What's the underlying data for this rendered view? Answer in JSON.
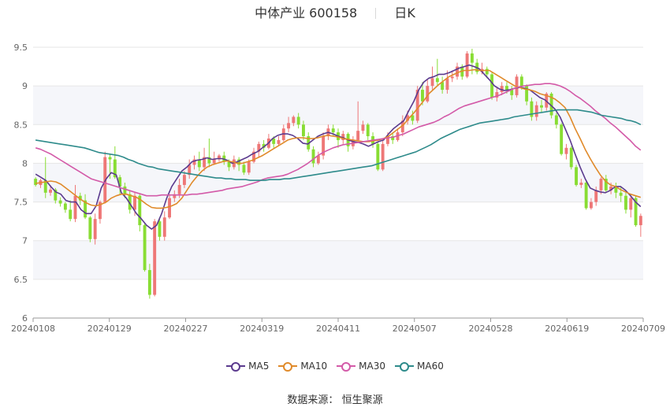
{
  "header": {
    "title": "中体产业 600158",
    "period": "日K"
  },
  "source": {
    "label": "数据来源：",
    "name": "恒生聚源"
  },
  "chart_data": {
    "type": "candlestick",
    "title": "中体产业 600158",
    "ylim": [
      6,
      9.5
    ],
    "yticks": [
      "6",
      "6.5",
      "7",
      "7.5",
      "8",
      "8.5",
      "9",
      "9.5"
    ],
    "x_tick_labels": [
      "20240108",
      "20240129",
      "20240227",
      "20240319",
      "20240411",
      "20240507",
      "20240528",
      "20240619",
      "20240709"
    ],
    "up_color": "#ee7777",
    "down_color": "#88dd33",
    "grid": true,
    "legend": {
      "placement": "bottom-center"
    },
    "candles": [
      [
        7.8,
        7.72,
        7.82,
        7.7
      ],
      [
        7.72,
        7.78,
        7.8,
        7.68
      ],
      [
        7.78,
        7.62,
        8.08,
        7.55
      ],
      [
        7.62,
        7.66,
        7.72,
        7.58
      ],
      [
        7.66,
        7.52,
        7.68,
        7.48
      ],
      [
        7.52,
        7.48,
        7.56,
        7.44
      ],
      [
        7.48,
        7.4,
        7.5,
        7.36
      ],
      [
        7.4,
        7.28,
        7.52,
        7.25
      ],
      [
        7.28,
        7.58,
        7.72,
        7.24
      ],
      [
        7.58,
        7.52,
        7.62,
        7.46
      ],
      [
        7.52,
        7.3,
        7.6,
        7.28
      ],
      [
        7.3,
        7.02,
        7.32,
        6.98
      ],
      [
        7.02,
        7.28,
        7.35,
        6.95
      ],
      [
        7.28,
        7.5,
        7.52,
        7.22
      ],
      [
        7.5,
        8.08,
        8.15,
        7.48
      ],
      [
        8.08,
        8.05,
        8.12,
        7.8
      ],
      [
        8.05,
        7.82,
        8.22,
        7.8
      ],
      [
        7.82,
        7.7,
        7.85,
        7.6
      ],
      [
        7.7,
        7.6,
        7.75,
        7.55
      ],
      [
        7.6,
        7.4,
        7.65,
        7.35
      ],
      [
        7.4,
        7.58,
        7.62,
        7.32
      ],
      [
        7.58,
        7.2,
        7.6,
        7.12
      ],
      [
        7.2,
        6.62,
        7.22,
        6.6
      ],
      [
        6.62,
        6.3,
        6.7,
        6.25
      ],
      [
        6.3,
        7.25,
        7.28,
        6.28
      ],
      [
        7.25,
        7.05,
        7.3,
        7.0
      ],
      [
        7.05,
        7.3,
        7.38,
        7.0
      ],
      [
        7.3,
        7.55,
        7.6,
        7.28
      ],
      [
        7.55,
        7.6,
        7.65,
        7.5
      ],
      [
        7.6,
        7.72,
        7.8,
        7.55
      ],
      [
        7.72,
        7.85,
        7.9,
        7.68
      ],
      [
        7.85,
        7.98,
        8.05,
        7.8
      ],
      [
        7.98,
        8.05,
        8.1,
        7.92
      ],
      [
        8.05,
        7.95,
        8.15,
        7.9
      ],
      [
        7.95,
        8.08,
        8.2,
        7.9
      ],
      [
        8.08,
        8.0,
        8.32,
        7.95
      ],
      [
        8.0,
        8.05,
        8.15,
        7.98
      ],
      [
        8.05,
        8.1,
        8.12,
        8.02
      ],
      [
        8.1,
        8.02,
        8.15,
        7.98
      ],
      [
        8.02,
        7.95,
        8.05,
        7.9
      ],
      [
        7.95,
        8.05,
        8.1,
        7.92
      ],
      [
        8.05,
        7.98,
        8.08,
        7.9
      ],
      [
        7.98,
        7.88,
        8.02,
        7.85
      ],
      [
        7.88,
        8.02,
        8.05,
        7.85
      ],
      [
        8.02,
        8.15,
        8.2,
        8.0
      ],
      [
        8.15,
        8.25,
        8.28,
        8.08
      ],
      [
        8.25,
        8.2,
        8.3,
        8.15
      ],
      [
        8.2,
        8.32,
        8.38,
        8.18
      ],
      [
        8.32,
        8.25,
        8.35,
        8.2
      ],
      [
        8.25,
        8.3,
        8.35,
        8.22
      ],
      [
        8.3,
        8.45,
        8.5,
        8.28
      ],
      [
        8.45,
        8.52,
        8.6,
        8.4
      ],
      [
        8.52,
        8.6,
        8.62,
        8.48
      ],
      [
        8.6,
        8.5,
        8.65,
        8.45
      ],
      [
        8.5,
        8.35,
        8.55,
        8.3
      ],
      [
        8.35,
        8.18,
        8.4,
        8.15
      ],
      [
        8.18,
        8.0,
        8.22,
        7.95
      ],
      [
        8.0,
        8.1,
        8.15,
        7.98
      ],
      [
        8.1,
        8.35,
        8.4,
        8.05
      ],
      [
        8.35,
        8.45,
        8.5,
        8.3
      ],
      [
        8.45,
        8.4,
        8.5,
        8.35
      ],
      [
        8.4,
        8.3,
        8.45,
        8.2
      ],
      [
        8.3,
        8.38,
        8.42,
        8.25
      ],
      [
        8.38,
        8.22,
        8.4,
        8.15
      ],
      [
        8.22,
        8.3,
        8.35,
        8.18
      ],
      [
        8.3,
        8.42,
        8.8,
        8.28
      ],
      [
        8.42,
        8.5,
        8.55,
        8.38
      ],
      [
        8.5,
        8.35,
        8.52,
        8.3
      ],
      [
        8.35,
        8.25,
        8.4,
        8.2
      ],
      [
        8.25,
        7.92,
        8.28,
        7.9
      ],
      [
        7.92,
        8.25,
        8.3,
        7.9
      ],
      [
        8.25,
        8.35,
        8.4,
        8.22
      ],
      [
        8.35,
        8.3,
        8.4,
        8.25
      ],
      [
        8.3,
        8.4,
        8.45,
        8.28
      ],
      [
        8.4,
        8.55,
        8.62,
        8.35
      ],
      [
        8.55,
        8.62,
        8.68,
        8.5
      ],
      [
        8.62,
        8.55,
        8.68,
        8.5
      ],
      [
        8.55,
        8.95,
        9.0,
        8.52
      ],
      [
        8.95,
        8.8,
        9.05,
        8.75
      ],
      [
        8.8,
        9.0,
        9.08,
        8.78
      ],
      [
        9.0,
        9.1,
        9.25,
        8.95
      ],
      [
        9.1,
        9.05,
        9.35,
        9.0
      ],
      [
        9.05,
        8.95,
        9.12,
        8.9
      ],
      [
        8.95,
        9.1,
        9.2,
        8.9
      ],
      [
        9.1,
        9.12,
        9.2,
        9.05
      ],
      [
        9.12,
        9.25,
        9.3,
        9.08
      ],
      [
        9.25,
        9.12,
        9.28,
        9.08
      ],
      [
        9.12,
        9.42,
        9.45,
        9.1
      ],
      [
        9.42,
        9.3,
        9.48,
        9.15
      ],
      [
        9.3,
        9.18,
        9.35,
        9.15
      ],
      [
        9.18,
        9.22,
        9.3,
        9.15
      ],
      [
        9.22,
        9.15,
        9.25,
        9.1
      ],
      [
        9.15,
        8.85,
        9.18,
        8.82
      ],
      [
        8.85,
        8.92,
        8.98,
        8.8
      ],
      [
        8.92,
        9.0,
        9.05,
        8.88
      ],
      [
        9.0,
        8.95,
        9.05,
        8.9
      ],
      [
        8.95,
        8.88,
        9.0,
        8.82
      ],
      [
        8.88,
        9.12,
        9.15,
        8.85
      ],
      [
        9.12,
        9.0,
        9.15,
        8.95
      ],
      [
        9.0,
        8.8,
        9.02,
        8.75
      ],
      [
        8.8,
        8.6,
        8.85,
        8.55
      ],
      [
        8.6,
        8.75,
        8.8,
        8.55
      ],
      [
        8.75,
        8.72,
        8.82,
        8.65
      ],
      [
        8.72,
        8.9,
        8.92,
        8.68
      ],
      [
        8.9,
        8.62,
        8.92,
        8.58
      ],
      [
        8.62,
        8.5,
        8.65,
        8.45
      ],
      [
        8.5,
        8.12,
        8.52,
        8.1
      ],
      [
        8.12,
        8.2,
        8.25,
        8.05
      ],
      [
        8.2,
        7.95,
        8.22,
        7.92
      ],
      [
        7.95,
        7.72,
        7.98,
        7.7
      ],
      [
        7.72,
        7.75,
        7.8,
        7.68
      ],
      [
        7.75,
        7.42,
        7.78,
        7.4
      ],
      [
        7.42,
        7.5,
        7.55,
        7.4
      ],
      [
        7.5,
        7.65,
        7.7,
        7.45
      ],
      [
        7.65,
        7.8,
        7.82,
        7.6
      ],
      [
        7.8,
        7.65,
        7.85,
        7.62
      ],
      [
        7.65,
        7.7,
        7.75,
        7.6
      ],
      [
        7.7,
        7.62,
        7.75,
        7.55
      ],
      [
        7.62,
        7.58,
        7.7,
        7.5
      ],
      [
        7.58,
        7.4,
        7.62,
        7.35
      ],
      [
        7.4,
        7.55,
        7.58,
        7.3
      ],
      [
        7.55,
        7.2,
        7.58,
        7.18
      ],
      [
        7.2,
        7.32,
        7.35,
        7.05
      ]
    ],
    "series": [
      {
        "name": "MA5",
        "color": "#5b3a8e",
        "values": [
          7.86,
          7.82,
          7.78,
          7.7,
          7.63,
          7.6,
          7.52,
          7.5,
          7.5,
          7.4,
          7.35,
          7.35,
          7.45,
          7.68,
          7.8,
          7.88,
          7.85,
          7.62,
          7.55,
          7.45,
          7.35,
          7.28,
          7.2,
          7.15,
          7.2,
          7.35,
          7.55,
          7.7,
          7.8,
          7.9,
          7.95,
          8.02,
          8.04,
          8.05,
          8.07,
          8.05,
          8.06,
          8.06,
          8.04,
          8.0,
          8.02,
          8.05,
          8.08,
          8.12,
          8.15,
          8.2,
          8.25,
          8.32,
          8.36,
          8.38,
          8.38,
          8.36,
          8.32,
          8.26,
          8.25,
          8.3,
          8.35,
          8.38,
          8.4,
          8.38,
          8.35,
          8.33,
          8.3,
          8.28,
          8.27,
          8.25,
          8.22,
          8.25,
          8.28,
          8.3,
          8.38,
          8.45,
          8.5,
          8.55,
          8.68,
          8.8,
          8.95,
          9.05,
          9.1,
          9.12,
          9.15,
          9.15,
          9.17,
          9.2,
          9.23,
          9.25,
          9.27,
          9.25,
          9.22,
          9.15,
          9.08,
          9.0,
          8.96,
          8.94,
          8.95,
          8.97,
          8.98,
          8.97,
          8.95,
          8.9,
          8.85,
          8.82,
          8.76,
          8.7,
          8.6,
          8.45,
          8.3,
          8.12,
          7.95,
          7.8,
          7.68,
          7.65,
          7.63,
          7.62,
          7.65,
          7.7,
          7.7,
          7.65,
          7.58,
          7.5,
          7.44
        ]
      },
      {
        "name": "MA10",
        "color": "#e08a2a",
        "values": [
          7.74,
          7.75,
          7.76,
          7.77,
          7.76,
          7.73,
          7.68,
          7.63,
          7.58,
          7.53,
          7.49,
          7.46,
          7.45,
          7.47,
          7.5,
          7.55,
          7.58,
          7.6,
          7.6,
          7.58,
          7.56,
          7.52,
          7.47,
          7.43,
          7.42,
          7.42,
          7.43,
          7.45,
          7.48,
          7.55,
          7.65,
          7.75,
          7.83,
          7.9,
          7.95,
          7.98,
          8.0,
          8.02,
          8.03,
          8.02,
          8.0,
          8.0,
          8.02,
          8.04,
          8.07,
          8.1,
          8.14,
          8.18,
          8.22,
          8.26,
          8.3,
          8.32,
          8.33,
          8.33,
          8.32,
          8.32,
          8.33,
          8.35,
          8.36,
          8.35,
          8.34,
          8.32,
          8.31,
          8.3,
          8.29,
          8.28,
          8.28,
          8.29,
          8.3,
          8.32,
          8.35,
          8.4,
          8.45,
          8.5,
          8.58,
          8.65,
          8.73,
          8.81,
          8.9,
          8.96,
          9.02,
          9.07,
          9.12,
          9.15,
          9.18,
          9.2,
          9.2,
          9.21,
          9.2,
          9.2,
          9.2,
          9.16,
          9.12,
          9.08,
          9.04,
          9.0,
          8.98,
          8.96,
          8.95,
          8.93,
          8.9,
          8.88,
          8.86,
          8.83,
          8.78,
          8.72,
          8.6,
          8.45,
          8.32,
          8.18,
          8.06,
          7.95,
          7.85,
          7.77,
          7.72,
          7.7,
          7.66,
          7.63,
          7.6,
          7.58,
          7.56
        ]
      },
      {
        "name": "MA30",
        "color": "#d35aa8",
        "values": [
          8.2,
          8.18,
          8.15,
          8.12,
          8.08,
          8.04,
          8.0,
          7.96,
          7.92,
          7.88,
          7.84,
          7.8,
          7.78,
          7.76,
          7.74,
          7.72,
          7.7,
          7.68,
          7.66,
          7.64,
          7.62,
          7.6,
          7.58,
          7.58,
          7.58,
          7.59,
          7.59,
          7.59,
          7.59,
          7.59,
          7.59,
          7.6,
          7.6,
          7.61,
          7.62,
          7.63,
          7.64,
          7.65,
          7.67,
          7.68,
          7.69,
          7.7,
          7.72,
          7.74,
          7.76,
          7.79,
          7.81,
          7.82,
          7.83,
          7.84,
          7.86,
          7.89,
          7.92,
          7.96,
          8.0,
          8.05,
          8.1,
          8.14,
          8.17,
          8.2,
          8.22,
          8.24,
          8.25,
          8.26,
          8.27,
          8.28,
          8.29,
          8.3,
          8.31,
          8.32,
          8.33,
          8.34,
          8.36,
          8.38,
          8.41,
          8.44,
          8.47,
          8.49,
          8.51,
          8.53,
          8.56,
          8.6,
          8.63,
          8.67,
          8.71,
          8.74,
          8.76,
          8.78,
          8.8,
          8.82,
          8.84,
          8.86,
          8.88,
          8.91,
          8.94,
          8.97,
          8.99,
          9.0,
          9.01,
          9.02,
          9.02,
          9.03,
          9.03,
          9.02,
          9.0,
          8.97,
          8.93,
          8.88,
          8.84,
          8.79,
          8.74,
          8.68,
          8.63,
          8.58,
          8.52,
          8.47,
          8.41,
          8.35,
          8.29,
          8.22,
          8.17
        ]
      },
      {
        "name": "MA60",
        "color": "#2e8b8b",
        "values": [
          8.3,
          8.29,
          8.28,
          8.27,
          8.26,
          8.25,
          8.24,
          8.23,
          8.22,
          8.21,
          8.2,
          8.18,
          8.16,
          8.14,
          8.13,
          8.12,
          8.11,
          8.1,
          8.08,
          8.05,
          8.03,
          8.0,
          7.98,
          7.96,
          7.95,
          7.93,
          7.92,
          7.91,
          7.9,
          7.89,
          7.88,
          7.87,
          7.86,
          7.85,
          7.84,
          7.83,
          7.82,
          7.81,
          7.81,
          7.8,
          7.8,
          7.79,
          7.79,
          7.79,
          7.78,
          7.78,
          7.78,
          7.78,
          7.79,
          7.79,
          7.79,
          7.8,
          7.8,
          7.81,
          7.82,
          7.83,
          7.84,
          7.85,
          7.86,
          7.87,
          7.88,
          7.89,
          7.9,
          7.91,
          7.92,
          7.93,
          7.94,
          7.95,
          7.96,
          7.97,
          7.99,
          8.01,
          8.03,
          8.05,
          8.07,
          8.09,
          8.11,
          8.13,
          8.15,
          8.18,
          8.21,
          8.24,
          8.28,
          8.32,
          8.35,
          8.38,
          8.41,
          8.44,
          8.46,
          8.48,
          8.5,
          8.52,
          8.53,
          8.54,
          8.55,
          8.56,
          8.57,
          8.58,
          8.6,
          8.61,
          8.62,
          8.63,
          8.64,
          8.65,
          8.66,
          8.67,
          8.68,
          8.69,
          8.69,
          8.69,
          8.69,
          8.69,
          8.68,
          8.67,
          8.66,
          8.64,
          8.62,
          8.61,
          8.6,
          8.59,
          8.58,
          8.56,
          8.55,
          8.53,
          8.5
        ]
      }
    ]
  }
}
